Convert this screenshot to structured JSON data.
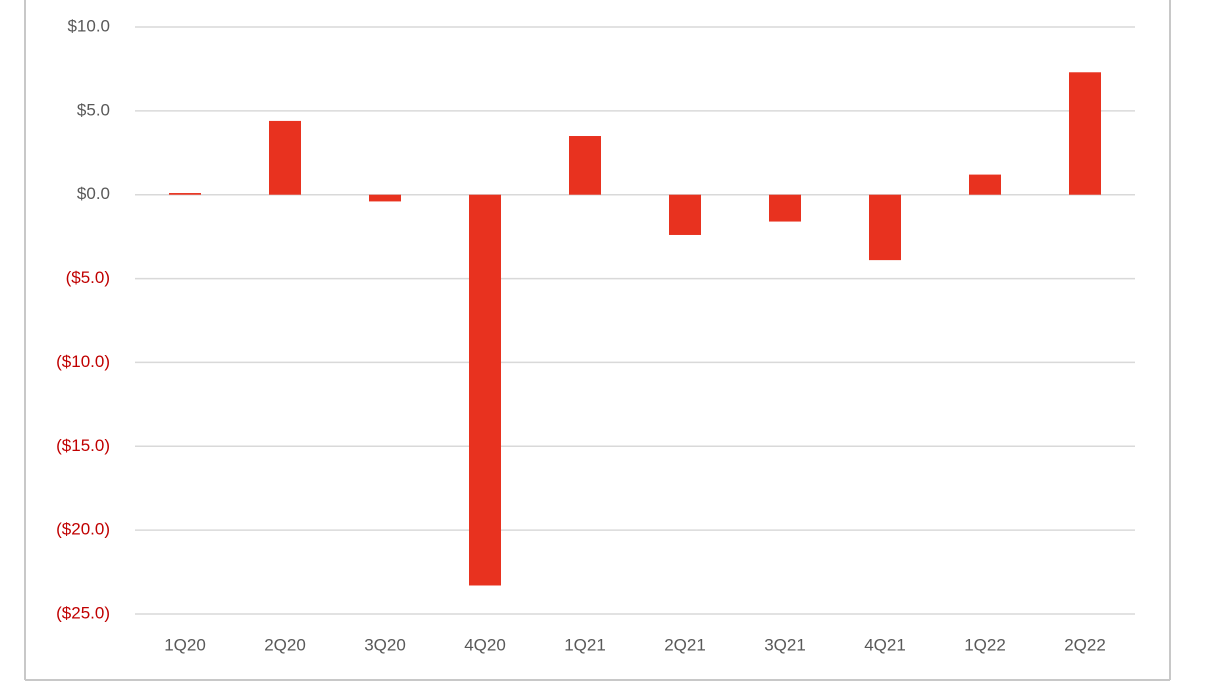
{
  "chart_data": {
    "type": "bar",
    "categories": [
      "1Q20",
      "2Q20",
      "3Q20",
      "4Q20",
      "1Q21",
      "2Q21",
      "3Q21",
      "4Q21",
      "1Q22",
      "2Q22"
    ],
    "values": [
      0.1,
      4.4,
      -0.4,
      -23.3,
      3.5,
      -2.4,
      -1.6,
      -3.9,
      1.2,
      7.3
    ],
    "color": "#e8321f",
    "ylim": [
      -25,
      10
    ],
    "yticks": [
      {
        "value": 10,
        "label": "$10.0"
      },
      {
        "value": 5,
        "label": "$5.0"
      },
      {
        "value": 0,
        "label": "$0.0"
      },
      {
        "value": -5,
        "label": "($5.0)"
      },
      {
        "value": -10,
        "label": "($10.0)"
      },
      {
        "value": -15,
        "label": "($15.0)"
      },
      {
        "value": -20,
        "label": "($20.0)"
      },
      {
        "value": -25,
        "label": "($25.0)"
      }
    ],
    "tick_color": "#595959",
    "negative_tick_color": "#c00000",
    "grid": true
  }
}
